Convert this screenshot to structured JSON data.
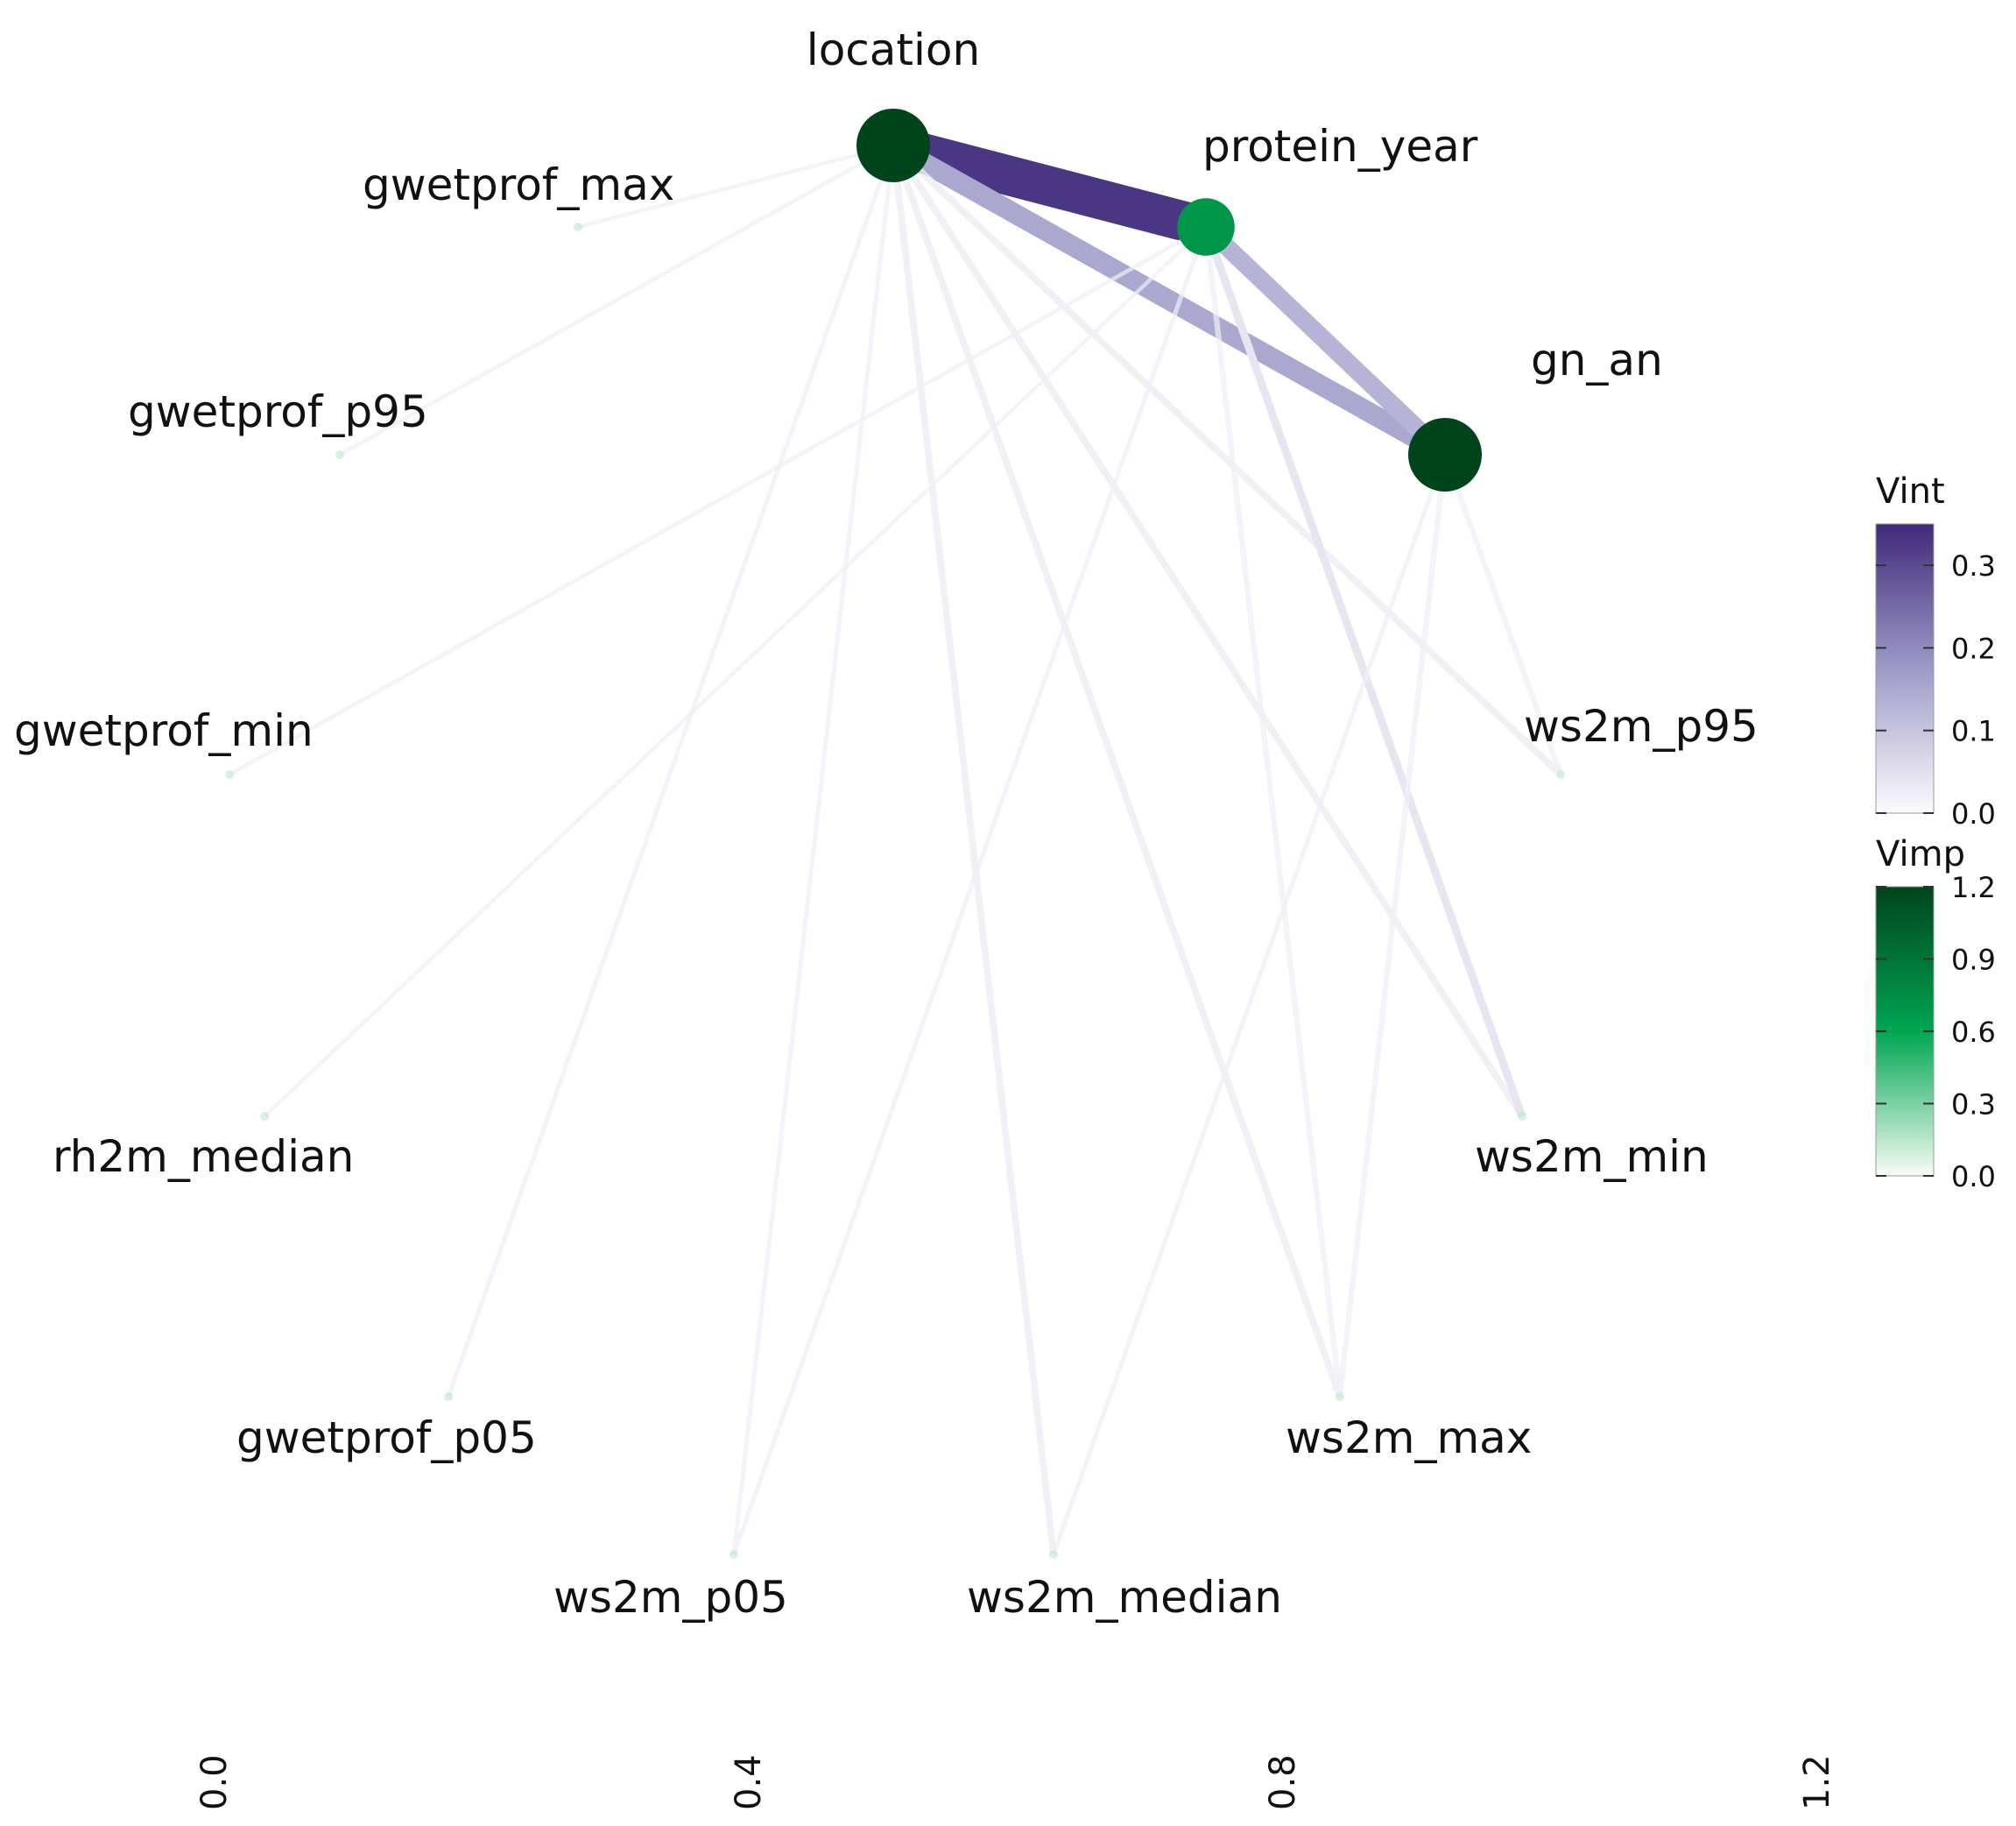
{
  "nodes": [
    {
      "id": "location",
      "label": "location",
      "vimp": 1.2
    },
    {
      "id": "protein_year",
      "label": "protein_year",
      "vimp": 0.7
    },
    {
      "id": "gn_an",
      "label": "gn_an",
      "vimp": 1.2
    },
    {
      "id": "ws2m_p95",
      "label": "ws2m_p95",
      "vimp": 0.05
    },
    {
      "id": "ws2m_min",
      "label": "ws2m_min",
      "vimp": 0.02
    },
    {
      "id": "ws2m_max",
      "label": "ws2m_max",
      "vimp": 0.02
    },
    {
      "id": "ws2m_median",
      "label": "ws2m_median",
      "vimp": 0.02
    },
    {
      "id": "ws2m_p05",
      "label": "ws2m_p05",
      "vimp": 0.02
    },
    {
      "id": "gwetprof_p05",
      "label": "gwetprof_p05",
      "vimp": 0.02
    },
    {
      "id": "rh2m_median",
      "label": "rh2m_median",
      "vimp": 0.01
    },
    {
      "id": "gwetprof_min",
      "label": "gwetprof_min",
      "vimp": 0.01
    },
    {
      "id": "gwetprof_p95",
      "label": "gwetprof_p95",
      "vimp": 0.02
    },
    {
      "id": "gwetprof_max",
      "label": "gwetprof_max",
      "vimp": 0.01
    }
  ],
  "edges": [
    {
      "source": "location",
      "target": "protein_year",
      "vint": 0.33
    },
    {
      "source": "location",
      "target": "gn_an",
      "vint": 0.15
    },
    {
      "source": "protein_year",
      "target": "gn_an",
      "vint": 0.13
    },
    {
      "source": "location",
      "target": "gwetprof_max",
      "vint": 0.005
    },
    {
      "source": "location",
      "target": "gwetprof_p95",
      "vint": 0.005
    },
    {
      "source": "location",
      "target": "gwetprof_p05",
      "vint": 0.01
    },
    {
      "source": "location",
      "target": "ws2m_p05",
      "vint": 0.01
    },
    {
      "source": "location",
      "target": "ws2m_median",
      "vint": 0.03
    },
    {
      "source": "location",
      "target": "ws2m_max",
      "vint": 0.03
    },
    {
      "source": "location",
      "target": "ws2m_min",
      "vint": 0.03
    },
    {
      "source": "location",
      "target": "ws2m_p95",
      "vint": 0.03
    },
    {
      "source": "protein_year",
      "target": "gwetprof_min",
      "vint": 0.005
    },
    {
      "source": "protein_year",
      "target": "rh2m_median",
      "vint": 0.005
    },
    {
      "source": "protein_year",
      "target": "ws2m_p05",
      "vint": 0.01
    },
    {
      "source": "protein_year",
      "target": "ws2m_max",
      "vint": 0.02
    },
    {
      "source": "protein_year",
      "target": "ws2m_min",
      "vint": 0.04
    },
    {
      "source": "gn_an",
      "target": "ws2m_p95",
      "vint": 0.02
    },
    {
      "source": "gn_an",
      "target": "ws2m_max",
      "vint": 0.02
    },
    {
      "source": "gn_an",
      "target": "ws2m_median",
      "vint": 0.01
    }
  ],
  "legend": {
    "vint": {
      "title": "Vint",
      "ticks": [
        "0.3",
        "0.2",
        "0.1",
        "0.0"
      ],
      "min": 0,
      "max": 0.35,
      "color_low": "#fcfbfd",
      "color_mid": "#9e9ac8",
      "color_high": "#3f2a7a"
    },
    "vimp": {
      "title": "Vimp",
      "ticks": [
        "1.2",
        "0.9",
        "0.6",
        "0.3",
        "0.0"
      ],
      "min": 0,
      "max": 1.2,
      "color_low": "#f7fcf5",
      "color_mid": "#00a651",
      "color_high": "#00441b"
    }
  },
  "x_axis": {
    "ticks": [
      "0.0",
      "0.4",
      "0.8",
      "1.2"
    ]
  }
}
